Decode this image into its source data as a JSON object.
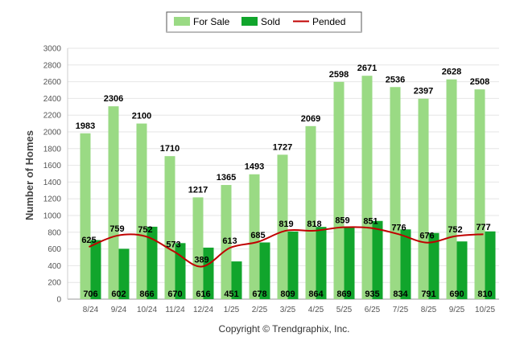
{
  "chart_data": {
    "type": "bar",
    "ylabel": "Number of Homes",
    "ylim": [
      0,
      3000
    ],
    "yticks": [
      0,
      200,
      400,
      600,
      800,
      1000,
      1200,
      1400,
      1600,
      1800,
      2000,
      2200,
      2400,
      2600,
      2800,
      3000
    ],
    "categories": [
      "8/24",
      "9/24",
      "10/24",
      "11/24",
      "12/24",
      "1/25",
      "2/25",
      "3/25",
      "4/25",
      "5/25",
      "6/25",
      "7/25",
      "8/25",
      "9/25",
      "10/25"
    ],
    "series": [
      {
        "name": "For Sale",
        "kind": "bar",
        "color": "#9ada84",
        "values": [
          1983,
          2306,
          2100,
          1710,
          1217,
          1365,
          1493,
          1727,
          2069,
          2598,
          2671,
          2536,
          2397,
          2628,
          2508
        ]
      },
      {
        "name": "Sold",
        "kind": "bar",
        "color": "#11a52c",
        "values": [
          706,
          602,
          866,
          670,
          616,
          451,
          678,
          809,
          864,
          869,
          935,
          834,
          791,
          690,
          810
        ]
      },
      {
        "name": "Pended",
        "kind": "line",
        "color": "#c00000",
        "values": [
          625,
          759,
          752,
          573,
          389,
          613,
          685,
          819,
          818,
          859,
          851,
          776,
          676,
          752,
          777
        ]
      }
    ],
    "grid": true,
    "legend": "top-center"
  },
  "footer": {
    "copyright": "Copyright © Trendgraphix, Inc."
  }
}
